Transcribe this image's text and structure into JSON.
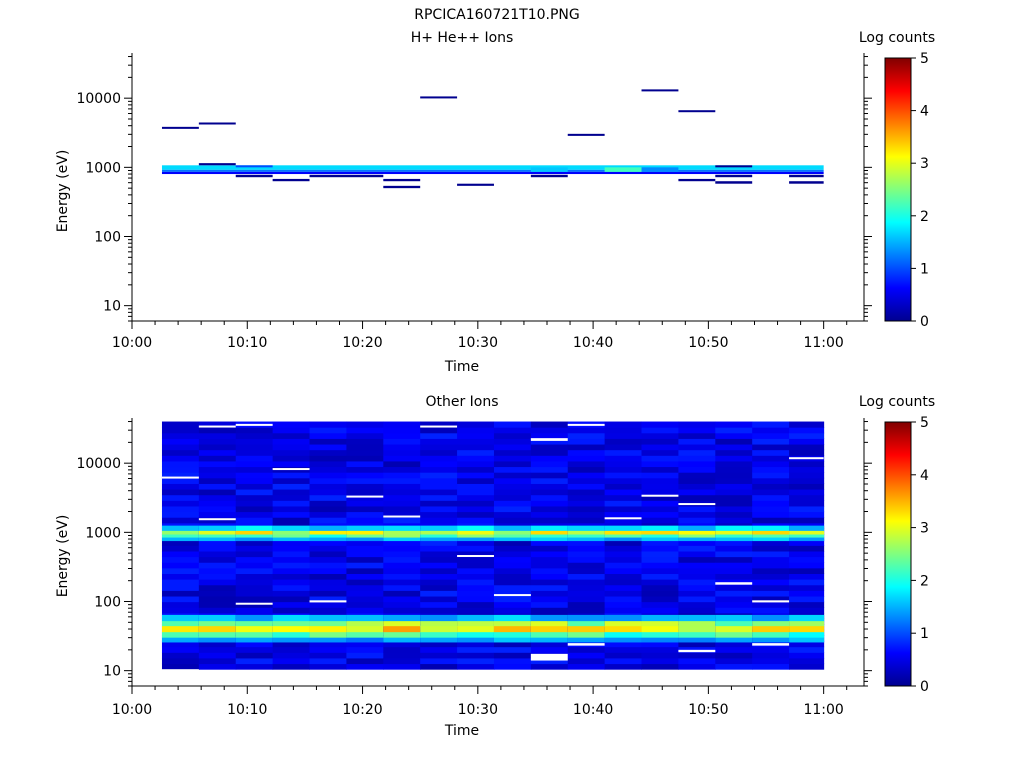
{
  "figure": {
    "title": "RPCICA160721T10.PNG"
  },
  "chart_data": [
    {
      "type": "heatmap",
      "title": "H+ He++ Ions",
      "xlabel": "Time",
      "ylabel": "Energy (eV)",
      "xlim": [
        "10:00",
        "11:03"
      ],
      "ylim": [
        6,
        45000
      ],
      "yscale": "log",
      "x_tick_labels": [
        "10:00",
        "10:10",
        "10:20",
        "10:30",
        "10:40",
        "10:50",
        "11:00"
      ],
      "y_tick_labels": [
        "10",
        "100",
        "1000",
        "10000"
      ],
      "time_bins_start_min": [
        2.6,
        5.8,
        9.0,
        12.2,
        15.4,
        18.6,
        21.8,
        25.0,
        28.2,
        31.4,
        34.6,
        37.8,
        41.0,
        44.2,
        47.4,
        50.6,
        53.8,
        57.0
      ],
      "colorbar": {
        "label": "Log counts",
        "range": [
          0,
          5
        ],
        "tick_labels": [
          "0",
          "1",
          "2",
          "3",
          "4",
          "5"
        ]
      },
      "cells": [
        {
          "t0": 2.6,
          "t1": 60.0,
          "e_lo": 920,
          "e_hi": 1070,
          "v": 1.7
        },
        {
          "t0": 2.6,
          "t1": 60.0,
          "e_lo": 860,
          "e_hi": 920,
          "v": 1.2
        },
        {
          "t0": 2.6,
          "t1": 60.0,
          "e_lo": 800,
          "e_hi": 860,
          "v": 0.6
        },
        {
          "t0": 9.0,
          "t1": 12.2,
          "e_lo": 1000,
          "e_hi": 1070,
          "v": 1.0
        },
        {
          "t0": 34.6,
          "t1": 37.8,
          "e_lo": 860,
          "e_hi": 1000,
          "v": 1.6
        },
        {
          "t0": 41.0,
          "t1": 44.2,
          "e_lo": 860,
          "e_hi": 1000,
          "v": 2.2
        },
        {
          "t0": 44.2,
          "t1": 47.4,
          "e_lo": 860,
          "e_hi": 1000,
          "v": 1.3
        },
        {
          "t0": 2.6,
          "t1": 5.8,
          "e_lo": 3600,
          "e_hi": 3850,
          "v": 0.0
        },
        {
          "t0": 5.8,
          "t1": 9.0,
          "e_lo": 4200,
          "e_hi": 4450,
          "v": 0.0
        },
        {
          "t0": 5.8,
          "t1": 9.0,
          "e_lo": 1070,
          "e_hi": 1150,
          "v": 0.0
        },
        {
          "t0": 9.0,
          "t1": 12.2,
          "e_lo": 720,
          "e_hi": 780,
          "v": 0.0
        },
        {
          "t0": 12.2,
          "t1": 15.4,
          "e_lo": 630,
          "e_hi": 680,
          "v": 0.0
        },
        {
          "t0": 15.4,
          "t1": 21.8,
          "e_lo": 720,
          "e_hi": 780,
          "v": 0.0
        },
        {
          "t0": 21.8,
          "t1": 25.0,
          "e_lo": 630,
          "e_hi": 680,
          "v": 0.0
        },
        {
          "t0": 21.8,
          "t1": 25.0,
          "e_lo": 500,
          "e_hi": 540,
          "v": 0.0
        },
        {
          "t0": 25.0,
          "t1": 28.2,
          "e_lo": 10000,
          "e_hi": 10600,
          "v": 0.0
        },
        {
          "t0": 28.2,
          "t1": 31.4,
          "e_lo": 540,
          "e_hi": 580,
          "v": 0.0
        },
        {
          "t0": 34.6,
          "t1": 37.8,
          "e_lo": 720,
          "e_hi": 780,
          "v": 0.0
        },
        {
          "t0": 37.8,
          "t1": 41.0,
          "e_lo": 2850,
          "e_hi": 3050,
          "v": 0.0
        },
        {
          "t0": 44.2,
          "t1": 47.4,
          "e_lo": 12600,
          "e_hi": 13400,
          "v": 0.0
        },
        {
          "t0": 47.4,
          "t1": 50.6,
          "e_lo": 6300,
          "e_hi": 6700,
          "v": 0.0
        },
        {
          "t0": 47.4,
          "t1": 50.6,
          "e_lo": 630,
          "e_hi": 680,
          "v": 0.0
        },
        {
          "t0": 50.6,
          "t1": 53.8,
          "e_lo": 1000,
          "e_hi": 1070,
          "v": 0.0
        },
        {
          "t0": 50.6,
          "t1": 53.8,
          "e_lo": 720,
          "e_hi": 780,
          "v": 0.0
        },
        {
          "t0": 50.6,
          "t1": 53.8,
          "e_lo": 580,
          "e_hi": 630,
          "v": 0.0
        },
        {
          "t0": 57.0,
          "t1": 60.0,
          "e_lo": 720,
          "e_hi": 780,
          "v": 0.0
        },
        {
          "t0": 57.0,
          "t1": 60.0,
          "e_lo": 580,
          "e_hi": 630,
          "v": 0.0
        }
      ]
    },
    {
      "type": "heatmap",
      "title": "Other Ions",
      "xlabel": "Time",
      "ylabel": "Energy (eV)",
      "xlim": [
        "10:00",
        "11:03"
      ],
      "ylim": [
        6,
        45000
      ],
      "yscale": "log",
      "x_tick_labels": [
        "10:00",
        "10:10",
        "10:20",
        "10:30",
        "10:40",
        "10:50",
        "11:00"
      ],
      "y_tick_labels": [
        "10",
        "100",
        "1000",
        "10000"
      ],
      "time_bins_start_min": [
        2.6,
        5.8,
        9.0,
        12.2,
        15.4,
        18.6,
        21.8,
        25.0,
        28.2,
        31.4,
        34.6,
        37.8,
        41.0,
        44.2,
        47.4,
        50.6,
        53.8,
        57.0
      ],
      "colorbar": {
        "label": "Log counts",
        "range": [
          0,
          5
        ],
        "tick_labels": [
          "0",
          "1",
          "2",
          "3",
          "4",
          "5"
        ]
      },
      "energy_range_eV": [
        10.5,
        40000
      ],
      "background_level": 0.55,
      "bands": [
        {
          "e_lo": 1050,
          "e_hi": 1250,
          "v": 1.7
        },
        {
          "e_lo": 930,
          "e_hi": 1050,
          "v": 2.9
        },
        {
          "e_lo": 840,
          "e_hi": 930,
          "v": 2.3
        },
        {
          "e_lo": 760,
          "e_hi": 840,
          "v": 1.5
        },
        {
          "e_lo": 52,
          "e_hi": 64,
          "v": 1.5
        },
        {
          "e_lo": 44,
          "e_hi": 52,
          "v": 2.6
        },
        {
          "e_lo": 36,
          "e_hi": 44,
          "v": 3.2
        },
        {
          "e_lo": 30,
          "e_hi": 36,
          "v": 2.2
        },
        {
          "e_lo": 26,
          "e_hi": 30,
          "v": 1.4
        }
      ],
      "white_cells": [
        {
          "t0": 2.6,
          "t1": 5.8,
          "e_lo": 6000,
          "e_hi": 6400
        },
        {
          "t0": 5.8,
          "t1": 9.0,
          "e_lo": 33000,
          "e_hi": 35000
        },
        {
          "t0": 5.8,
          "t1": 9.0,
          "e_lo": 1500,
          "e_hi": 1600
        },
        {
          "t0": 9.0,
          "t1": 12.2,
          "e_lo": 35000,
          "e_hi": 37000
        },
        {
          "t0": 9.0,
          "t1": 12.2,
          "e_lo": 90,
          "e_hi": 96
        },
        {
          "t0": 12.2,
          "t1": 15.4,
          "e_lo": 8000,
          "e_hi": 8500
        },
        {
          "t0": 15.4,
          "t1": 18.6,
          "e_lo": 97,
          "e_hi": 104
        },
        {
          "t0": 18.6,
          "t1": 21.8,
          "e_lo": 3200,
          "e_hi": 3400
        },
        {
          "t0": 21.8,
          "t1": 25.0,
          "e_lo": 1650,
          "e_hi": 1750
        },
        {
          "t0": 25.0,
          "t1": 28.2,
          "e_lo": 33000,
          "e_hi": 35000
        },
        {
          "t0": 28.2,
          "t1": 31.4,
          "e_lo": 440,
          "e_hi": 470
        },
        {
          "t0": 31.4,
          "t1": 34.6,
          "e_lo": 120,
          "e_hi": 128
        },
        {
          "t0": 34.6,
          "t1": 37.8,
          "e_lo": 21000,
          "e_hi": 23000
        },
        {
          "t0": 34.6,
          "t1": 37.8,
          "e_lo": 14,
          "e_hi": 17.5
        },
        {
          "t0": 37.8,
          "t1": 41.0,
          "e_lo": 35000,
          "e_hi": 37000
        },
        {
          "t0": 37.8,
          "t1": 41.0,
          "e_lo": 23,
          "e_hi": 25
        },
        {
          "t0": 41.0,
          "t1": 44.2,
          "e_lo": 1550,
          "e_hi": 1650
        },
        {
          "t0": 44.2,
          "t1": 47.4,
          "e_lo": 3300,
          "e_hi": 3500
        },
        {
          "t0": 47.4,
          "t1": 50.6,
          "e_lo": 2500,
          "e_hi": 2650
        },
        {
          "t0": 47.4,
          "t1": 50.6,
          "e_lo": 18.5,
          "e_hi": 20
        },
        {
          "t0": 50.6,
          "t1": 53.8,
          "e_lo": 175,
          "e_hi": 190
        },
        {
          "t0": 53.8,
          "t1": 57.0,
          "e_lo": 97,
          "e_hi": 104
        },
        {
          "t0": 53.8,
          "t1": 57.0,
          "e_lo": 23,
          "e_hi": 25
        },
        {
          "t0": 57.0,
          "t1": 60.0,
          "e_lo": 11500,
          "e_hi": 12200
        }
      ]
    }
  ]
}
